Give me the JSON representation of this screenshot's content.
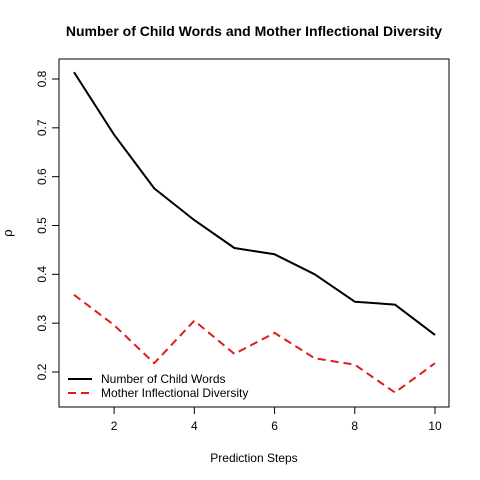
{
  "chart_data": {
    "type": "line",
    "title": "Number of Child Words and Mother Inflectional Diversity",
    "xlabel": "Prediction Steps",
    "ylabel": "ρ",
    "xlim": [
      1,
      10
    ],
    "ylim": [
      0.2,
      0.8
    ],
    "x_ticks": [
      2,
      4,
      6,
      8,
      10
    ],
    "y_ticks": [
      0.2,
      0.3,
      0.4,
      0.5,
      0.6,
      0.7,
      0.8
    ],
    "grid": false,
    "legend_position": "bottom-left",
    "x": [
      1,
      2,
      3,
      4,
      5,
      6,
      7,
      8,
      9,
      10
    ],
    "series": [
      {
        "name": "Number of Child Words",
        "color": "#000000",
        "dash": "solid",
        "values": [
          0.814,
          0.686,
          0.576,
          0.511,
          0.454,
          0.441,
          0.4,
          0.344,
          0.338,
          0.276
        ]
      },
      {
        "name": "Mother Inflectional Diversity",
        "color": "#dd1c1c",
        "dash": "dashed",
        "values": [
          0.358,
          0.296,
          0.218,
          0.305,
          0.237,
          0.28,
          0.228,
          0.215,
          0.158,
          0.218
        ]
      }
    ]
  }
}
